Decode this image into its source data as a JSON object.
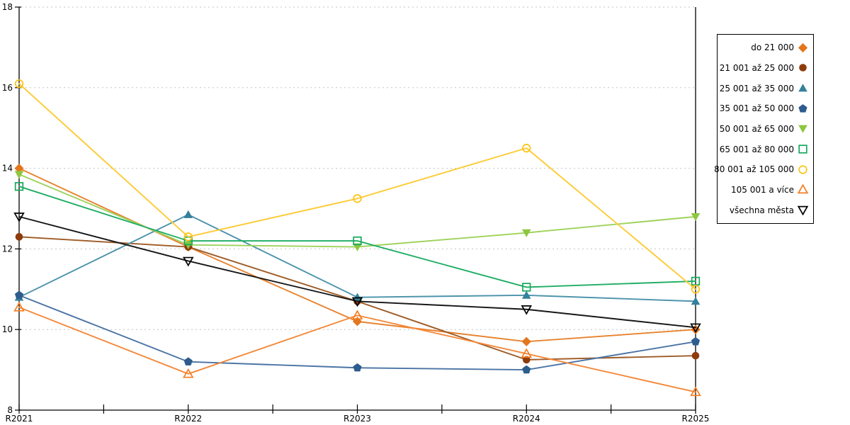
{
  "chart": {
    "background": "#ffffff",
    "axis_color": "#000000",
    "grid_color": "#c3c3c3",
    "tick_label_color": "#000000",
    "tick_font_size": 12,
    "legend_font_size": 12
  },
  "chart_data": {
    "type": "line",
    "title": "",
    "xlabel": "",
    "ylabel": "",
    "x_labels": [
      "R2021",
      "R2022",
      "R2023",
      "R2024",
      "R2025"
    ],
    "ylim": [
      8,
      18
    ],
    "y_ticks": [
      8,
      10,
      12,
      14,
      16,
      18
    ],
    "grid": "horizontal dashed gridlines at y ticks 10-18",
    "frame": "left, bottom and right solid axis lines; minor x ticks at midpoints",
    "legend_position": "outside right",
    "series": [
      {
        "name": "do 21 000",
        "marker": "diamond-filled",
        "marker_color": "#E2771E",
        "line_color": "#E8822E",
        "values": [
          14.0,
          12.05,
          10.2,
          9.7,
          10.0
        ]
      },
      {
        "name": "21 001 až 25 000",
        "marker": "circle-filled",
        "marker_color": "#8E3B0B",
        "line_color": "#9D5B26",
        "values": [
          12.3,
          12.05,
          10.7,
          9.25,
          9.35
        ]
      },
      {
        "name": "25 001 až 35 000",
        "marker": "triangle-up-filled",
        "marker_color": "#35809B",
        "line_color": "#4C93AB",
        "values": [
          10.8,
          12.85,
          10.8,
          10.85,
          10.7
        ]
      },
      {
        "name": "35 001 až 50 000",
        "marker": "pentagon-filled",
        "marker_color": "#2D5C8E",
        "line_color": "#4A73A5",
        "values": [
          10.85,
          9.2,
          9.05,
          9.0,
          9.7
        ]
      },
      {
        "name": "50 001 až 65 000",
        "marker": "triangle-down-filled",
        "marker_color": "#8DC63F",
        "line_color": "#9ED25B",
        "values": [
          13.85,
          12.1,
          12.05,
          12.4,
          12.8
        ]
      },
      {
        "name": "65 001 až 80 000",
        "marker": "square-open",
        "marker_color": "#14A85A",
        "line_color": "#1FAD64",
        "values": [
          13.55,
          12.2,
          12.2,
          11.05,
          11.2
        ]
      },
      {
        "name": "80 001 až 105 000",
        "marker": "circle-open",
        "marker_color": "#FCC30F",
        "line_color": "#FDCB35",
        "values": [
          16.1,
          12.3,
          13.25,
          14.5,
          11.0
        ]
      },
      {
        "name": "105 001 a více",
        "marker": "triangle-up-open",
        "marker_color": "#F47D20",
        "line_color": "#F4883A",
        "values": [
          10.55,
          8.9,
          10.35,
          9.4,
          8.45
        ]
      },
      {
        "name": "všechna města",
        "marker": "triangle-down-open",
        "marker_color": "#000000",
        "line_color": "#161616",
        "values": [
          12.8,
          11.7,
          10.7,
          10.5,
          10.05
        ]
      }
    ]
  }
}
